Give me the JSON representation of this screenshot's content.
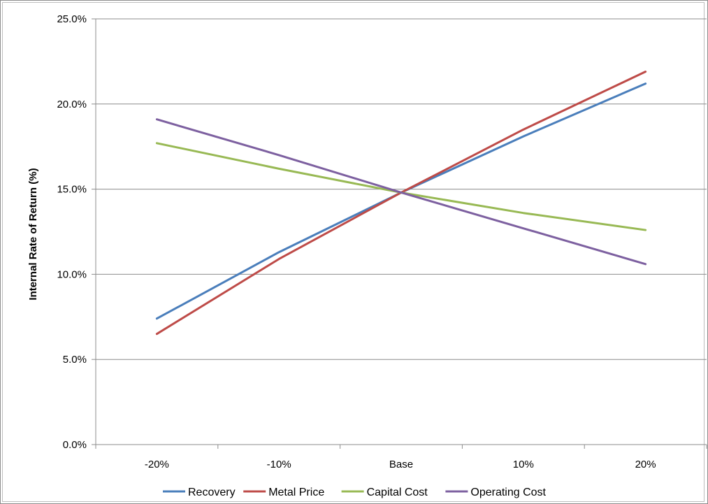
{
  "chart_data": {
    "type": "line",
    "title": "",
    "xlabel": "",
    "ylabel": "Internal Rate of Return (%)",
    "categories": [
      "-20%",
      "-10%",
      "Base",
      "10%",
      "20%"
    ],
    "y_tick_labels": [
      "0.0%",
      "5.0%",
      "10.0%",
      "15.0%",
      "20.0%",
      "25.0%"
    ],
    "ylim": [
      0,
      25
    ],
    "y_step": 5,
    "grid": "horizontal",
    "legend_position": "bottom",
    "series": [
      {
        "name": "Recovery",
        "color": "#4a7ebb",
        "values": [
          7.4,
          11.3,
          14.8,
          18.1,
          21.2
        ]
      },
      {
        "name": "Metal Price",
        "color": "#be4b48",
        "values": [
          6.5,
          10.9,
          14.8,
          18.5,
          21.9
        ]
      },
      {
        "name": "Capital Cost",
        "color": "#98b954",
        "values": [
          17.7,
          16.2,
          14.8,
          13.6,
          12.6
        ]
      },
      {
        "name": "Operating Cost",
        "color": "#7d60a0",
        "values": [
          19.1,
          17.0,
          14.8,
          12.7,
          10.6
        ]
      }
    ]
  }
}
